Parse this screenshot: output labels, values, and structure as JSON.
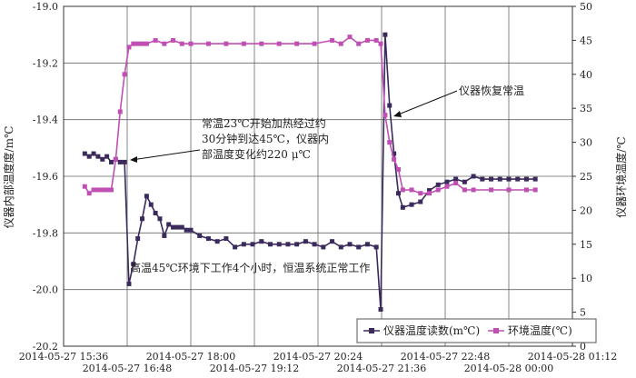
{
  "chart_data": {
    "type": "line",
    "ylabel": "仪器内部温度度/m℃",
    "y2label": "仪器环境温度/℃",
    "ylim": [
      -20.2,
      -19.0
    ],
    "y_ticks": [
      "-19.0",
      "-19.2",
      "-19.4",
      "-19.6",
      "-19.8",
      "-20.0",
      "-20.2"
    ],
    "y2lim": [
      0,
      50
    ],
    "y2_ticks": [
      "0",
      "5",
      "10",
      "15",
      "20",
      "25",
      "30",
      "35",
      "40",
      "45",
      "50"
    ],
    "x_ticks_top": [
      "2014-05-27 15:36",
      "2014-05-27 18:00",
      "2014-05-27 20:24",
      "2014-05-27 22:48",
      "2014-05-28 01:12"
    ],
    "x_ticks_bottom": [
      "2014-05-27 16:48",
      "2014-05-27 19:12",
      "2014-05-27 21:36",
      "2014-05-28 00:00"
    ],
    "grid": true,
    "legend_position": "bottom-right",
    "colors": {
      "instrument": "#3b2a5c",
      "environment": "#c04fb4",
      "grid": "#666666"
    },
    "series": [
      {
        "name": "仪器温度读数(m℃)",
        "axis": "left",
        "marker": "square",
        "x": [
          "2014-05-27 16:00",
          "2014-05-27 16:05",
          "2014-05-27 16:10",
          "2014-05-27 16:15",
          "2014-05-27 16:20",
          "2014-05-27 16:25",
          "2014-05-27 16:30",
          "2014-05-27 16:35",
          "2014-05-27 16:40",
          "2014-05-27 16:45",
          "2014-05-27 16:50",
          "2014-05-27 16:55",
          "2014-05-27 17:00",
          "2014-05-27 17:05",
          "2014-05-27 17:10",
          "2014-05-27 17:15",
          "2014-05-27 17:20",
          "2014-05-27 17:25",
          "2014-05-27 17:30",
          "2014-05-27 17:35",
          "2014-05-27 17:40",
          "2014-05-27 17:45",
          "2014-05-27 17:50",
          "2014-05-27 17:55",
          "2014-05-27 18:00",
          "2014-05-27 18:10",
          "2014-05-27 18:20",
          "2014-05-27 18:30",
          "2014-05-27 18:40",
          "2014-05-27 18:50",
          "2014-05-27 19:00",
          "2014-05-27 19:10",
          "2014-05-27 19:20",
          "2014-05-27 19:30",
          "2014-05-27 19:40",
          "2014-05-27 19:50",
          "2014-05-27 20:00",
          "2014-05-27 20:10",
          "2014-05-27 20:20",
          "2014-05-27 20:30",
          "2014-05-27 20:40",
          "2014-05-27 20:50",
          "2014-05-27 21:00",
          "2014-05-27 21:10",
          "2014-05-27 21:20",
          "2014-05-27 21:30",
          "2014-05-27 21:35",
          "2014-05-27 21:40",
          "2014-05-27 21:45",
          "2014-05-27 21:50",
          "2014-05-27 21:55",
          "2014-05-27 22:00",
          "2014-05-27 22:10",
          "2014-05-27 22:20",
          "2014-05-27 22:30",
          "2014-05-27 22:40",
          "2014-05-27 22:50",
          "2014-05-27 23:00",
          "2014-05-27 23:10",
          "2014-05-27 23:20",
          "2014-05-27 23:30",
          "2014-05-27 23:40",
          "2014-05-27 23:50",
          "2014-05-28 00:00",
          "2014-05-28 00:10",
          "2014-05-28 00:20",
          "2014-05-28 00:30"
        ],
        "y": [
          -19.52,
          -19.53,
          -19.52,
          -19.53,
          -19.54,
          -19.53,
          -19.55,
          -19.54,
          -19.55,
          -19.55,
          -19.98,
          -19.91,
          -19.82,
          -19.75,
          -19.67,
          -19.7,
          -19.73,
          -19.75,
          -19.81,
          -19.77,
          -19.78,
          -19.78,
          -19.78,
          -19.79,
          -19.79,
          -19.81,
          -19.82,
          -19.83,
          -19.82,
          -19.85,
          -19.84,
          -19.84,
          -19.83,
          -19.84,
          -19.84,
          -19.84,
          -19.84,
          -19.83,
          -19.84,
          -19.85,
          -19.83,
          -19.85,
          -19.84,
          -19.85,
          -19.84,
          -19.85,
          -20.07,
          -19.1,
          -19.35,
          -19.52,
          -19.66,
          -19.71,
          -19.7,
          -19.69,
          -19.65,
          -19.63,
          -19.62,
          -19.61,
          -19.62,
          -19.6,
          -19.61,
          -19.61,
          -19.61,
          -19.61,
          -19.61,
          -19.61,
          -19.61
        ]
      },
      {
        "name": "环境温度(℃)",
        "axis": "right",
        "marker": "square",
        "x": [
          "2014-05-27 16:00",
          "2014-05-27 16:05",
          "2014-05-27 16:10",
          "2014-05-27 16:15",
          "2014-05-27 16:20",
          "2014-05-27 16:25",
          "2014-05-27 16:30",
          "2014-05-27 16:35",
          "2014-05-27 16:40",
          "2014-05-27 16:45",
          "2014-05-27 16:50",
          "2014-05-27 16:55",
          "2014-05-27 17:00",
          "2014-05-27 17:05",
          "2014-05-27 17:10",
          "2014-05-27 17:20",
          "2014-05-27 17:30",
          "2014-05-27 17:40",
          "2014-05-27 17:50",
          "2014-05-27 18:00",
          "2014-05-27 18:20",
          "2014-05-27 18:40",
          "2014-05-27 19:00",
          "2014-05-27 19:20",
          "2014-05-27 19:40",
          "2014-05-27 20:00",
          "2014-05-27 20:20",
          "2014-05-27 20:40",
          "2014-05-27 20:50",
          "2014-05-27 21:00",
          "2014-05-27 21:10",
          "2014-05-27 21:20",
          "2014-05-27 21:30",
          "2014-05-27 21:35",
          "2014-05-27 21:40",
          "2014-05-27 21:45",
          "2014-05-27 21:50",
          "2014-05-27 21:55",
          "2014-05-27 22:00",
          "2014-05-27 22:10",
          "2014-05-27 22:20",
          "2014-05-27 22:30",
          "2014-05-27 22:40",
          "2014-05-27 22:50",
          "2014-05-27 23:00",
          "2014-05-27 23:10",
          "2014-05-27 23:20",
          "2014-05-27 23:40",
          "2014-05-28 00:00",
          "2014-05-28 00:20",
          "2014-05-28 00:30"
        ],
        "y": [
          23.5,
          22.5,
          23.0,
          23.0,
          23.0,
          23.0,
          23.0,
          27.5,
          34.5,
          40.0,
          44.0,
          44.5,
          44.5,
          44.5,
          44.5,
          45.0,
          44.5,
          45.0,
          44.5,
          44.5,
          44.5,
          44.5,
          44.5,
          44.5,
          44.5,
          44.5,
          44.5,
          45.0,
          44.5,
          45.5,
          44.5,
          45.0,
          45.0,
          44.5,
          34.0,
          30.0,
          27.5,
          26.0,
          23.0,
          23.0,
          22.5,
          22.5,
          23.0,
          23.5,
          24.0,
          23.0,
          23.0,
          23.0,
          23.0,
          23.0,
          23.0
        ]
      }
    ]
  },
  "annotations": {
    "heating_note": [
      "常温23℃开始加热经过约",
      "30分钟到达45℃，仪器内",
      "部温度变化约220 μ℃"
    ],
    "recovery_note": "仪器恢复常温",
    "constant_note": "高温45℃环境下工作4个小时，恒温系统正常工作"
  }
}
